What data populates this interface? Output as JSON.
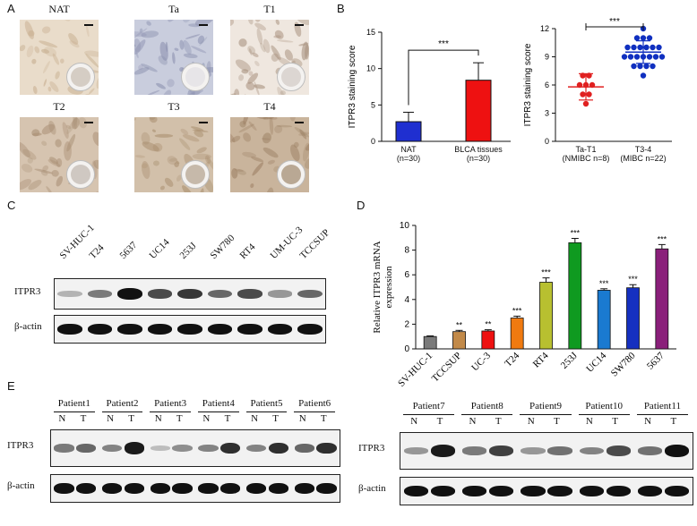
{
  "panelA": {
    "letter": "A",
    "images": [
      {
        "label": "NAT",
        "tone": "#e9dcca",
        "dark": "#c6ad8e",
        "inset": "#d5cdc4"
      },
      {
        "label": "Ta",
        "tone": "#c9cddd",
        "dark": "#8a8fae",
        "inset": "#e7e5e8"
      },
      {
        "label": "T1",
        "tone": "#efe7df",
        "dark": "#a7907d",
        "inset": "#dcd6d2"
      },
      {
        "label": "T2",
        "tone": "#d6c4b0",
        "dark": "#a98f75",
        "inset": "#cfc8c2"
      },
      {
        "label": "T3",
        "tone": "#d2c0aa",
        "dark": "#a78c6c",
        "inset": "#c6b9aa"
      },
      {
        "label": "T4",
        "tone": "#c9b49c",
        "dark": "#9c8064",
        "inset": "#b9a894"
      }
    ]
  },
  "panelB": {
    "letter": "B",
    "chart_data": [
      {
        "type": "bar",
        "ylabel": "ITPR3 staining score",
        "ylim": [
          0,
          15
        ],
        "yticks": [
          0,
          5,
          10,
          15
        ],
        "categories": [
          "NAT\n(n=30)",
          "BLCA tissues\n(n=30)"
        ],
        "values": [
          2.7,
          8.4
        ],
        "errors": [
          1.3,
          2.4
        ],
        "colors": [
          "#1f2fd0",
          "#ee1111"
        ],
        "significance": "***"
      },
      {
        "type": "scatter",
        "ylabel": "ITPR3 staining score",
        "ylim": [
          0,
          12
        ],
        "yticks": [
          0,
          3,
          6,
          9,
          12
        ],
        "categories": [
          "Ta-T1\n(NMIBC n=8)",
          "T3-4\n(MIBC n=22)"
        ],
        "groups": [
          {
            "name": "Ta-T1",
            "color": "#e02020",
            "points": [
              7,
              7,
              6,
              6,
              6,
              5,
              5,
              4
            ],
            "mean": 5.8,
            "sd": 1.4
          },
          {
            "name": "T3-4",
            "color": "#1030c0",
            "points": [
              12,
              11,
              11,
              11,
              10,
              10,
              10,
              10,
              10,
              10,
              9,
              9,
              9,
              9,
              9,
              9,
              9,
              8,
              8,
              8,
              8,
              7
            ],
            "mean": 9.5,
            "sd": 1.2
          }
        ],
        "significance": "***"
      }
    ]
  },
  "panelC": {
    "letter": "C",
    "lanes": [
      "SV-HUC-1",
      "T24",
      "5637",
      "UC14",
      "253J",
      "SW780",
      "RT4",
      "UM-UC-3",
      "TCCSUP"
    ],
    "rows": [
      {
        "label": "ITPR3",
        "intensity": [
          0.15,
          0.45,
          1.0,
          0.7,
          0.8,
          0.55,
          0.7,
          0.3,
          0.55
        ]
      },
      {
        "label": "β-actin",
        "intensity": [
          1,
          1,
          1,
          1,
          1,
          1,
          1,
          1,
          1
        ]
      }
    ]
  },
  "panelD": {
    "letter": "D",
    "chart_data": {
      "type": "bar",
      "ylabel": "Relative ITPR3 mRNA\nexpression",
      "ylim": [
        0,
        10
      ],
      "yticks": [
        0,
        2,
        4,
        6,
        8,
        10
      ],
      "categories": [
        "SV-HUC-1",
        "TCCSUP",
        "UC-3",
        "T24",
        "RT4",
        "253J",
        "UC14",
        "SW780",
        "5637"
      ],
      "values": [
        1.0,
        1.4,
        1.45,
        2.5,
        5.4,
        8.6,
        4.75,
        4.95,
        8.1
      ],
      "errors": [
        0.05,
        0.1,
        0.1,
        0.15,
        0.35,
        0.35,
        0.12,
        0.25,
        0.35
      ],
      "colors": [
        "#7a7a7a",
        "#c28a4a",
        "#ee1111",
        "#f07a10",
        "#b8c030",
        "#0f9a20",
        "#1a7ad0",
        "#1530c0",
        "#8a1f7a"
      ],
      "significance": [
        "",
        "**",
        "**",
        "***",
        "***",
        "***",
        "***",
        "***",
        "***"
      ]
    }
  },
  "panelE": {
    "letter": "E",
    "left": {
      "patients": [
        "Patient1",
        "Patient2",
        "Patient3",
        "Patient4",
        "Patient5",
        "Patient6"
      ],
      "itpr3": [
        [
          0.45,
          0.55
        ],
        [
          0.4,
          0.95
        ],
        [
          0.1,
          0.35
        ],
        [
          0.4,
          0.85
        ],
        [
          0.4,
          0.85
        ],
        [
          0.55,
          0.85
        ]
      ]
    },
    "right": {
      "patients": [
        "Patient7",
        "Patient8",
        "Patient9",
        "Patient10",
        "Patient11"
      ],
      "itpr3": [
        [
          0.3,
          0.95
        ],
        [
          0.45,
          0.75
        ],
        [
          0.3,
          0.5
        ],
        [
          0.4,
          0.7
        ],
        [
          0.5,
          1.0
        ]
      ]
    },
    "n_label": "N",
    "t_label": "T",
    "row_labels": {
      "itpr3": "ITPR3",
      "actin": "β-actin"
    }
  }
}
